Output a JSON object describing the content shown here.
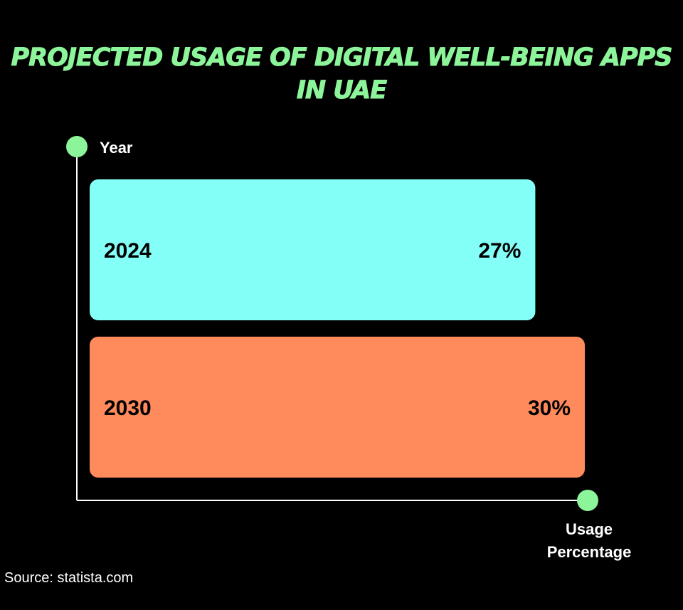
{
  "chart_data": {
    "type": "bar",
    "orientation": "horizontal",
    "title": "PROJECTED USAGE OF DIGITAL WELL-BEING APPS IN UAE",
    "ylabel": "Year",
    "xlabel": "Usage Percentage",
    "categories": [
      "2024",
      "2030"
    ],
    "values": [
      27,
      30
    ],
    "value_labels": [
      "27%",
      "30%"
    ],
    "bar_colors": [
      "#84FFF8",
      "#FF8A5C"
    ],
    "grid": false,
    "source": "Source: statista.com"
  },
  "colors": {
    "background": "#000000",
    "title": "#8CF59A",
    "axis_marker": "#8CF59A",
    "axis_line": "#FFFFFF",
    "text": "#FFFFFF"
  }
}
